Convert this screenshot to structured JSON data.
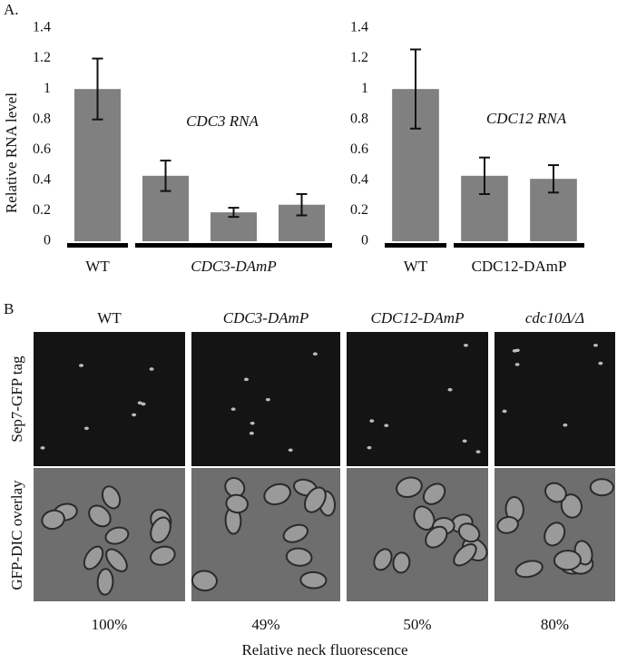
{
  "figure": {
    "panel_a_label": "A.",
    "panel_b_label": "B",
    "panel_b": {
      "columns": [
        "WT",
        "CDC3-DAmP",
        "CDC12-DAmP",
        "cdc10Δ/Δ"
      ],
      "rows": [
        "Sep7-GFP tag",
        "GFP-DIC overlay"
      ],
      "fluorescence": [
        "100%",
        "49%",
        "50%",
        "80%"
      ],
      "axis_label": "Relative neck fluorescence"
    }
  },
  "chart_data": [
    {
      "type": "bar",
      "y_label": "Relative RNA level",
      "annotation": "CDC3 RNA",
      "categories": [
        null,
        null,
        null,
        null
      ],
      "groups": [
        {
          "label": "WT",
          "span": 1
        },
        {
          "label": "CDC3-DAmP",
          "span": 3
        }
      ],
      "series": [
        {
          "color": "#808080",
          "values": [
            1.0,
            0.43,
            0.19,
            0.24
          ],
          "errors": [
            0.2,
            0.1,
            0.03,
            0.07
          ]
        }
      ],
      "ylim": [
        0,
        1.4
      ],
      "yticks": [
        0,
        0.2,
        0.4,
        0.6,
        0.8,
        1,
        1.2,
        1.4
      ]
    },
    {
      "type": "bar",
      "annotation": "CDC12 RNA",
      "categories": [
        null,
        null,
        null
      ],
      "groups": [
        {
          "label": "WT",
          "span": 1
        },
        {
          "label": "CDC12-DAmP",
          "span": 2
        }
      ],
      "series": [
        {
          "color": "#808080",
          "values": [
            1.0,
            0.43,
            0.41
          ],
          "errors": [
            0.26,
            0.12,
            0.09
          ]
        }
      ],
      "ylim": [
        0,
        1.4
      ],
      "yticks": [
        0,
        0.2,
        0.4,
        0.6,
        0.8,
        1,
        1.2,
        1.4
      ]
    }
  ]
}
